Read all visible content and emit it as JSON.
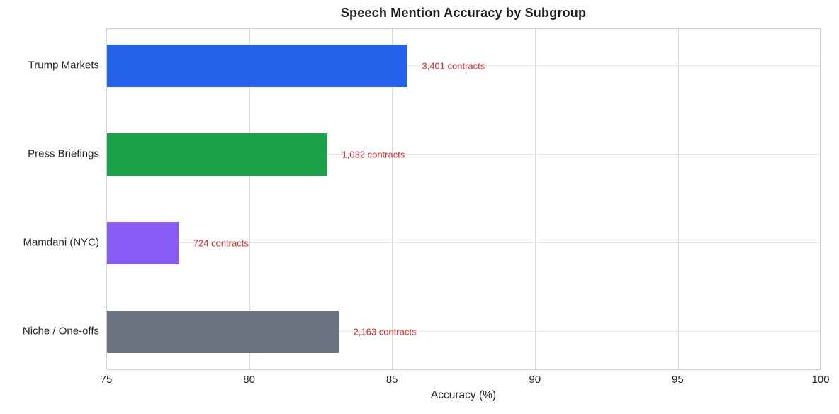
{
  "chart_data": {
    "type": "bar",
    "orientation": "horizontal",
    "title": "Speech Mention Accuracy by Subgroup",
    "xlabel": "Accuracy (%)",
    "ylabel": "",
    "xlim": [
      75,
      100
    ],
    "xticks": [
      75,
      80,
      85,
      90,
      95,
      100
    ],
    "grid": true,
    "categories": [
      "Trump Markets",
      "Press Briefings",
      "Mamdani (NYC)",
      "Niche / One-offs"
    ],
    "values": [
      85.5,
      82.7,
      77.5,
      83.1
    ],
    "bar_colors": [
      "#2563eb",
      "#1ca34a",
      "#8a5cf6",
      "#6b7280"
    ],
    "annotations": [
      "3,401 contracts",
      "1,032 contracts",
      "724 contracts",
      "2,163 contracts"
    ],
    "annotation_color": "#dc2c2c"
  }
}
